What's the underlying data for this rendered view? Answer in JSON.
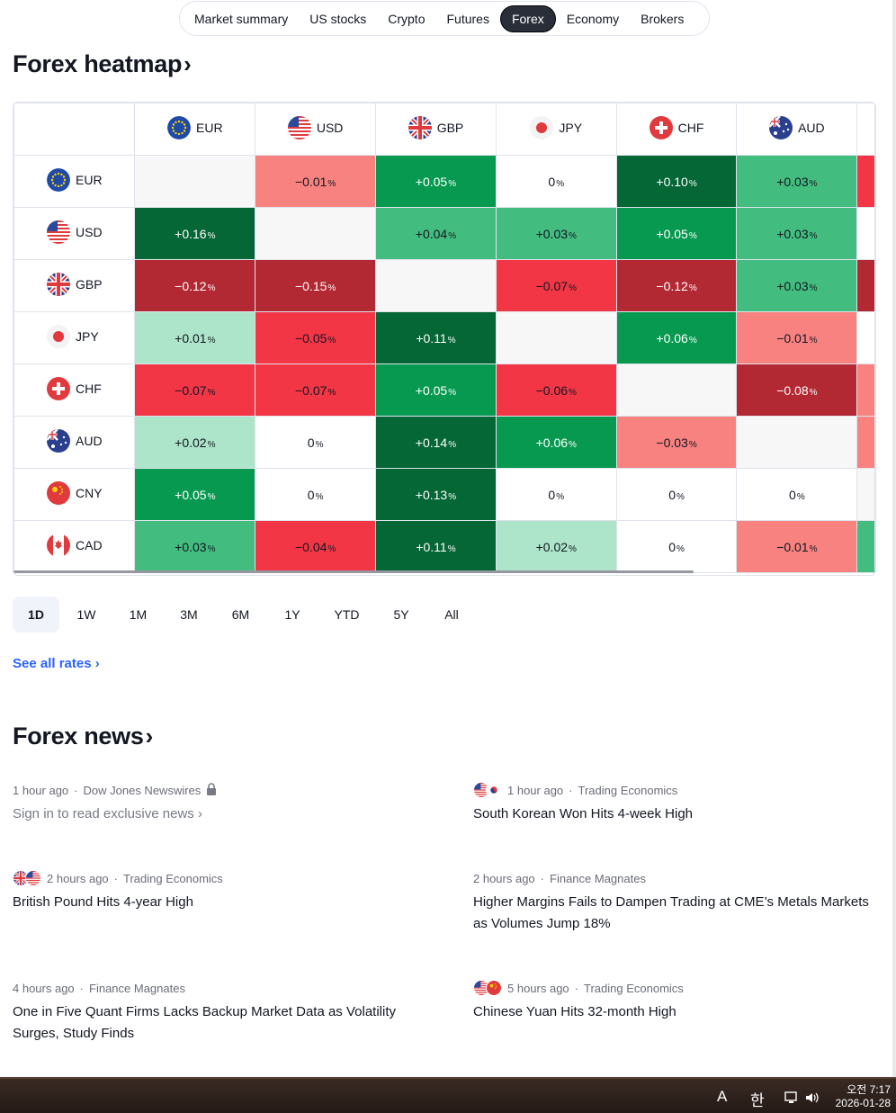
{
  "nav": {
    "tabs": [
      "Market summary",
      "US stocks",
      "Crypto",
      "Futures",
      "Forex",
      "Economy",
      "Brokers"
    ],
    "active": "Forex"
  },
  "heatmap": {
    "title": "Forex heatmap",
    "chevron": "›",
    "columns": [
      "EUR",
      "USD",
      "GBP",
      "JPY",
      "CHF",
      "AUD"
    ],
    "rows": [
      {
        "cur": "EUR",
        "cells": [
          "",
          "−0.01",
          "+0.05",
          "0",
          "+0.10",
          "+0.03"
        ],
        "edge": "#f23645"
      },
      {
        "cur": "USD",
        "cells": [
          "+0.16",
          "",
          "+0.04",
          "+0.03",
          "+0.05",
          "+0.03"
        ],
        "edge": "#ffffff"
      },
      {
        "cur": "GBP",
        "cells": [
          "−0.12",
          "−0.15",
          "",
          "−0.07",
          "−0.12",
          "+0.03"
        ],
        "edge": "#b22833"
      },
      {
        "cur": "JPY",
        "cells": [
          "+0.01",
          "−0.05",
          "+0.11",
          "",
          "+0.06",
          "−0.01"
        ],
        "edge": "#ffffff"
      },
      {
        "cur": "CHF",
        "cells": [
          "−0.07",
          "−0.07",
          "+0.05",
          "−0.06",
          "",
          "−0.08"
        ],
        "edge": "#f7827f"
      },
      {
        "cur": "AUD",
        "cells": [
          "+0.02",
          "0",
          "+0.14",
          "+0.06",
          "−0.03",
          ""
        ],
        "edge": "#f7827f"
      },
      {
        "cur": "CNY",
        "cells": [
          "+0.05",
          "0",
          "+0.13",
          "0",
          "0",
          "0"
        ],
        "edge": "#f7f7f7"
      },
      {
        "cur": "CAD",
        "cells": [
          "+0.03",
          "−0.04",
          "+0.11",
          "+0.02",
          "0",
          "−0.01"
        ],
        "edge": "#42bd7f"
      }
    ],
    "percent_sign": "%"
  },
  "periods": [
    "1D",
    "1W",
    "1M",
    "3M",
    "6M",
    "1Y",
    "YTD",
    "5Y",
    "All"
  ],
  "period_active": "1D",
  "see_all": "See all rates ›",
  "news_title": "Forex news",
  "news": [
    {
      "time": "1 hour ago",
      "source": "Dow Jones Newswires",
      "locked": true,
      "flags": [],
      "title": "Sign in to read exclusive news ›",
      "muted": true
    },
    {
      "time": "1 hour ago",
      "source": "Trading Economics",
      "locked": false,
      "flags": [
        "USD",
        "KRW"
      ],
      "title": "South Korean Won Hits 4-week High",
      "muted": false
    },
    {
      "time": "2 hours ago",
      "source": "Trading Economics",
      "locked": false,
      "flags": [
        "GBP",
        "USD"
      ],
      "title": "British Pound Hits 4-year High",
      "muted": false
    },
    {
      "time": "2 hours ago",
      "source": "Finance Magnates",
      "locked": false,
      "flags": [],
      "title": "Higher Margins Fails to Dampen Trading at CME’s Metals Markets as Volumes Jump 18%",
      "muted": false
    },
    {
      "time": "4 hours ago",
      "source": "Finance Magnates",
      "locked": false,
      "flags": [],
      "title": "One in Five Quant Firms Lacks Backup Market Data as Volatility Surges, Study Finds",
      "muted": false
    },
    {
      "time": "5 hours ago",
      "source": "Trading Economics",
      "locked": false,
      "flags": [
        "USD",
        "CNY"
      ],
      "title": "Chinese Yuan Hits 32-month High",
      "muted": false
    }
  ],
  "taskbar": {
    "ime_a": "A",
    "ime_han": "한",
    "time": "오전 7:17",
    "date": "2026-01-28"
  },
  "colors": {
    "g4": "#056636",
    "g3": "#089950",
    "g2": "#42bd7f",
    "g1": "#ace5c9",
    "r4": "#b22833",
    "r3": "#f23645",
    "r2": "#f7827f",
    "empty": "#f7f7f7",
    "link": "#2962ff"
  }
}
